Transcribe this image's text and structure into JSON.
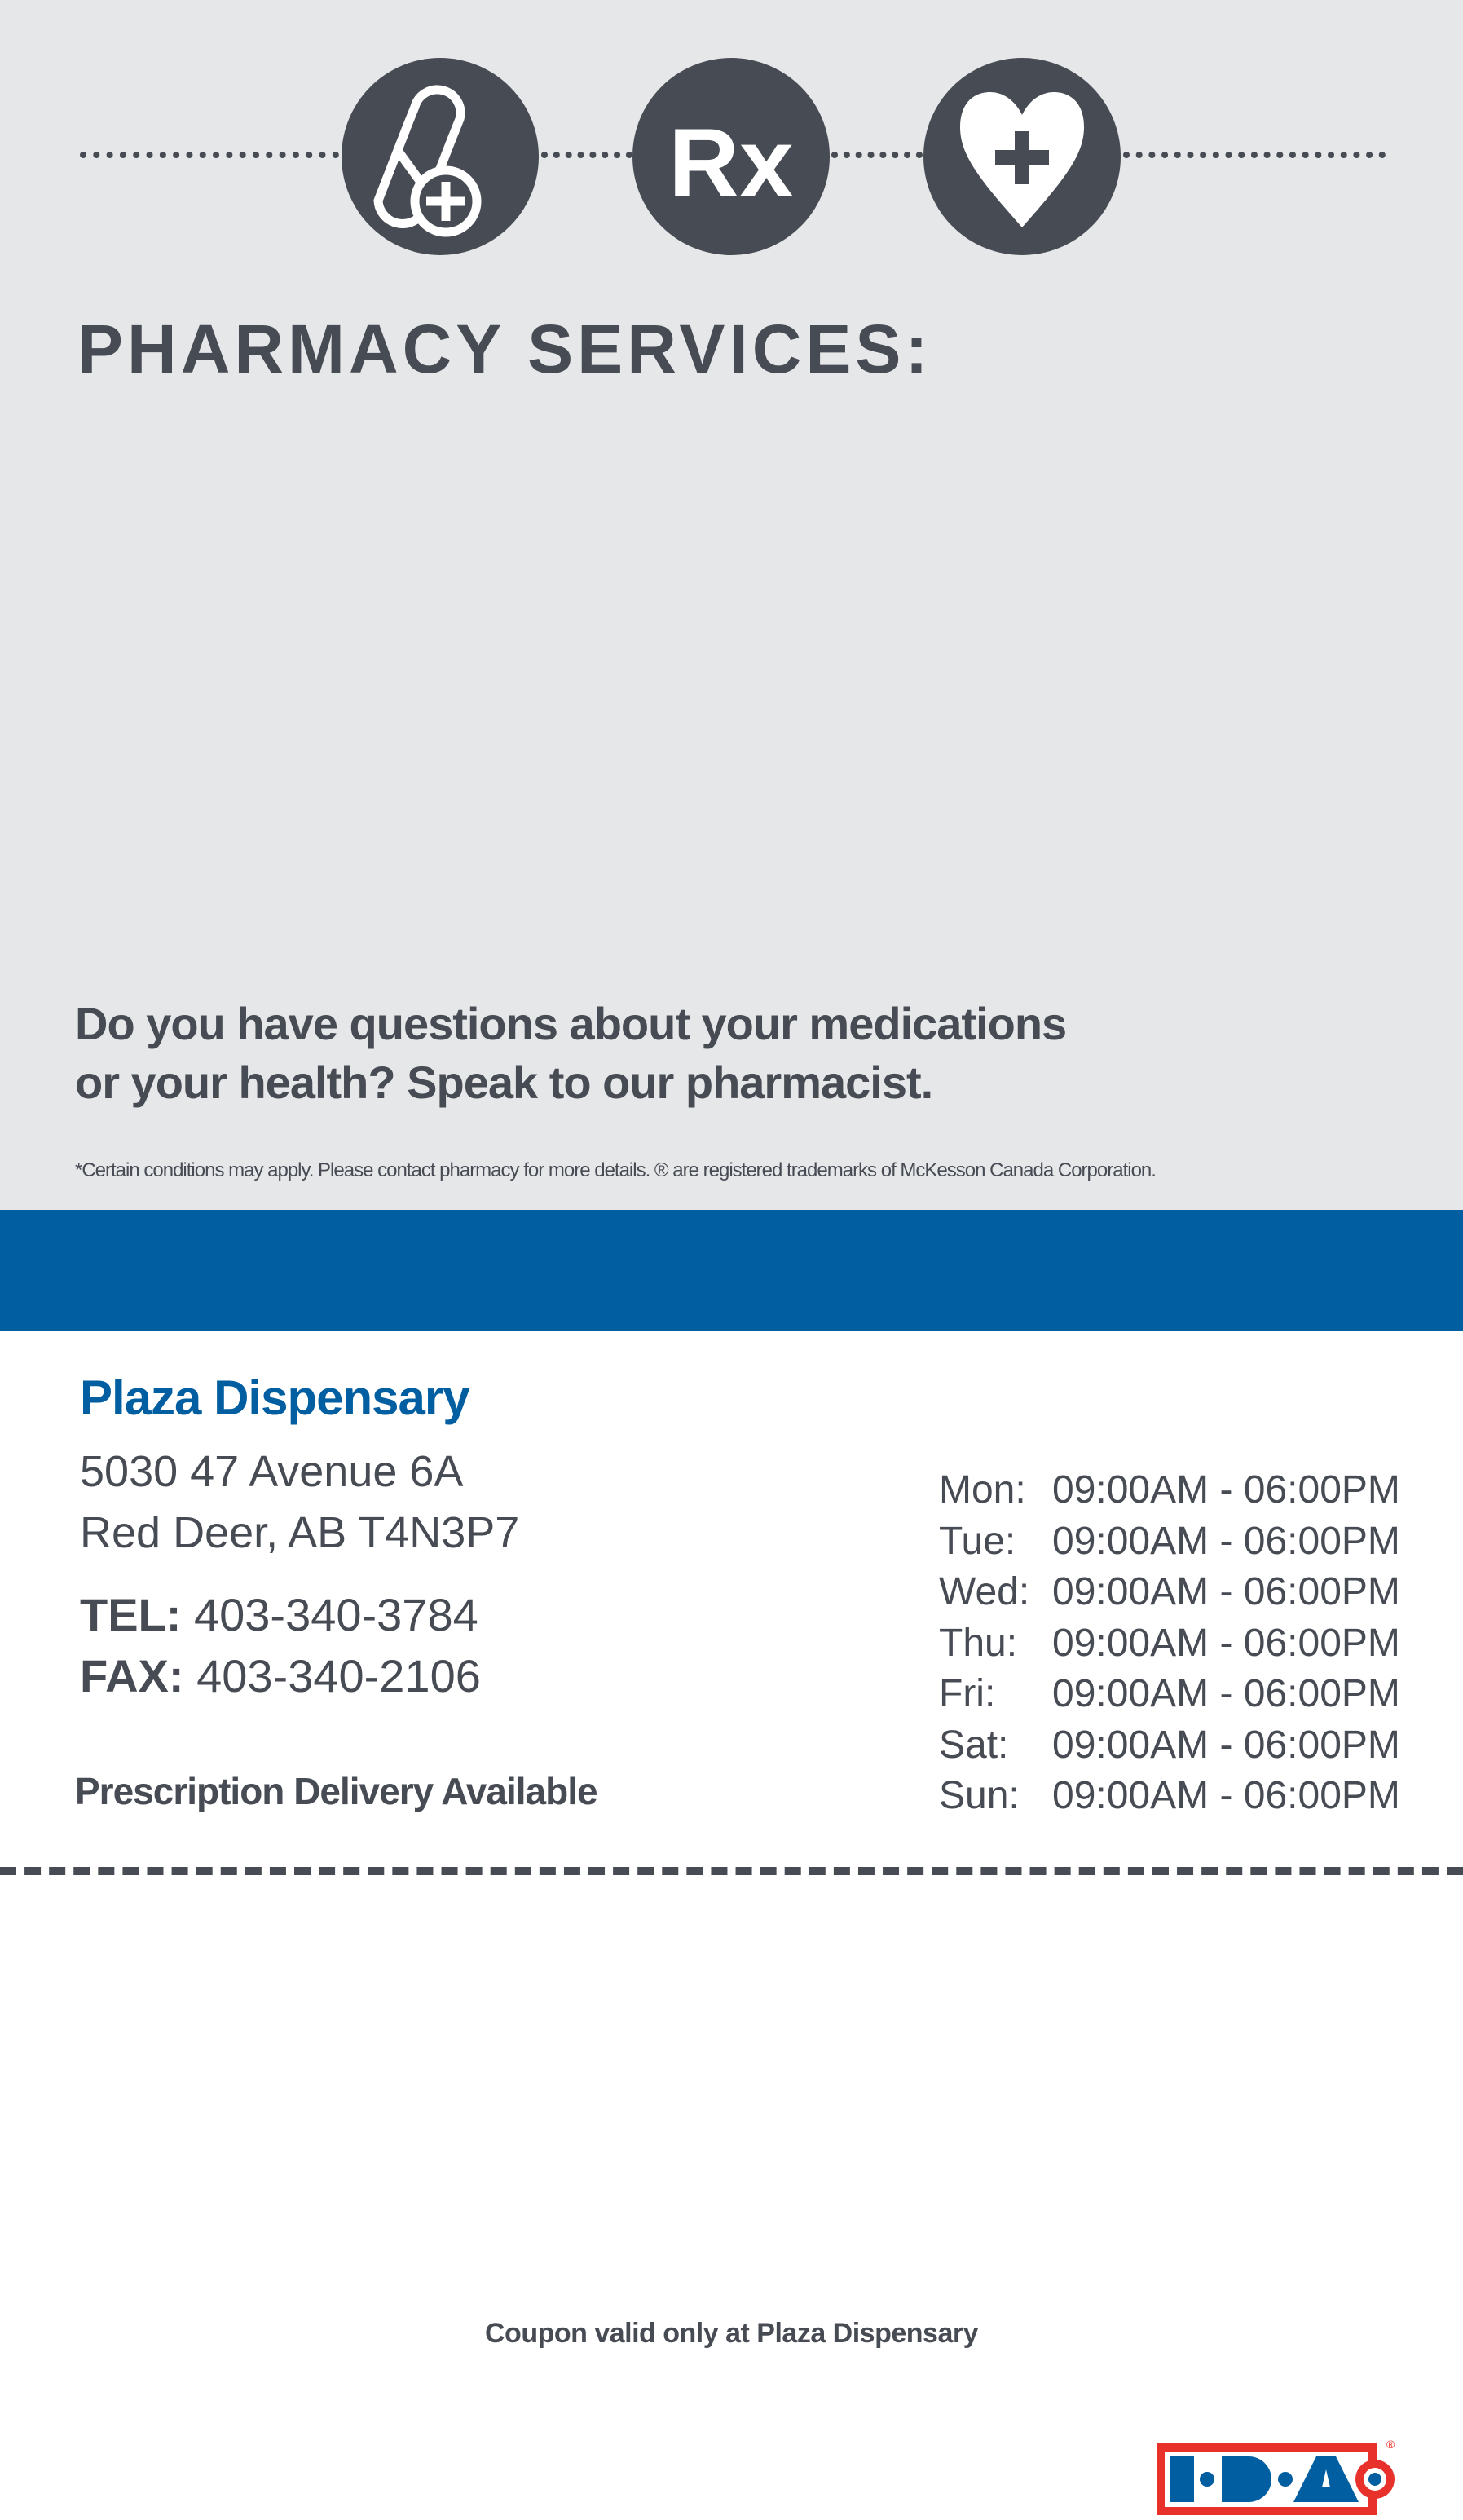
{
  "header": {
    "icons": [
      "pill-plus-icon",
      "rx-icon",
      "heart-plus-icon"
    ],
    "rx_glyph": "Rx",
    "title": "PHARMACY SERVICES:"
  },
  "question": {
    "line1": "Do you have questions about your medications",
    "line2": "or your health? Speak to our pharmacist."
  },
  "disclaimer": "*Certain conditions may apply. Please contact pharmacy for more details. ® are registered trademarks of McKesson Canada Corporation.",
  "brand": {
    "logo_text": "I·D·A®",
    "band_color": "#005ea1",
    "logo_red": "#e8312a"
  },
  "store": {
    "name": "Plaza Dispensary",
    "address_line1": "5030 47 Avenue 6A",
    "address_line2": "Red Deer, AB T4N3P7",
    "tel_label": "TEL:",
    "tel": "403-340-3784",
    "fax_label": "FAX:",
    "fax": "403-340-2106",
    "delivery": "Prescription Delivery Available"
  },
  "hours": [
    {
      "day": "Mon:",
      "time": "09:00AM - 06:00PM"
    },
    {
      "day": "Tue:",
      "time": "09:00AM - 06:00PM"
    },
    {
      "day": "Wed:",
      "time": "09:00AM - 06:00PM"
    },
    {
      "day": "Thu:",
      "time": "09:00AM - 06:00PM"
    },
    {
      "day": "Fri:",
      "time": "09:00AM - 06:00PM"
    },
    {
      "day": "Sat:",
      "time": "09:00AM - 06:00PM"
    },
    {
      "day": "Sun:",
      "time": "09:00AM - 06:00PM"
    }
  ],
  "coupon": "Coupon valid only at Plaza Dispensary"
}
